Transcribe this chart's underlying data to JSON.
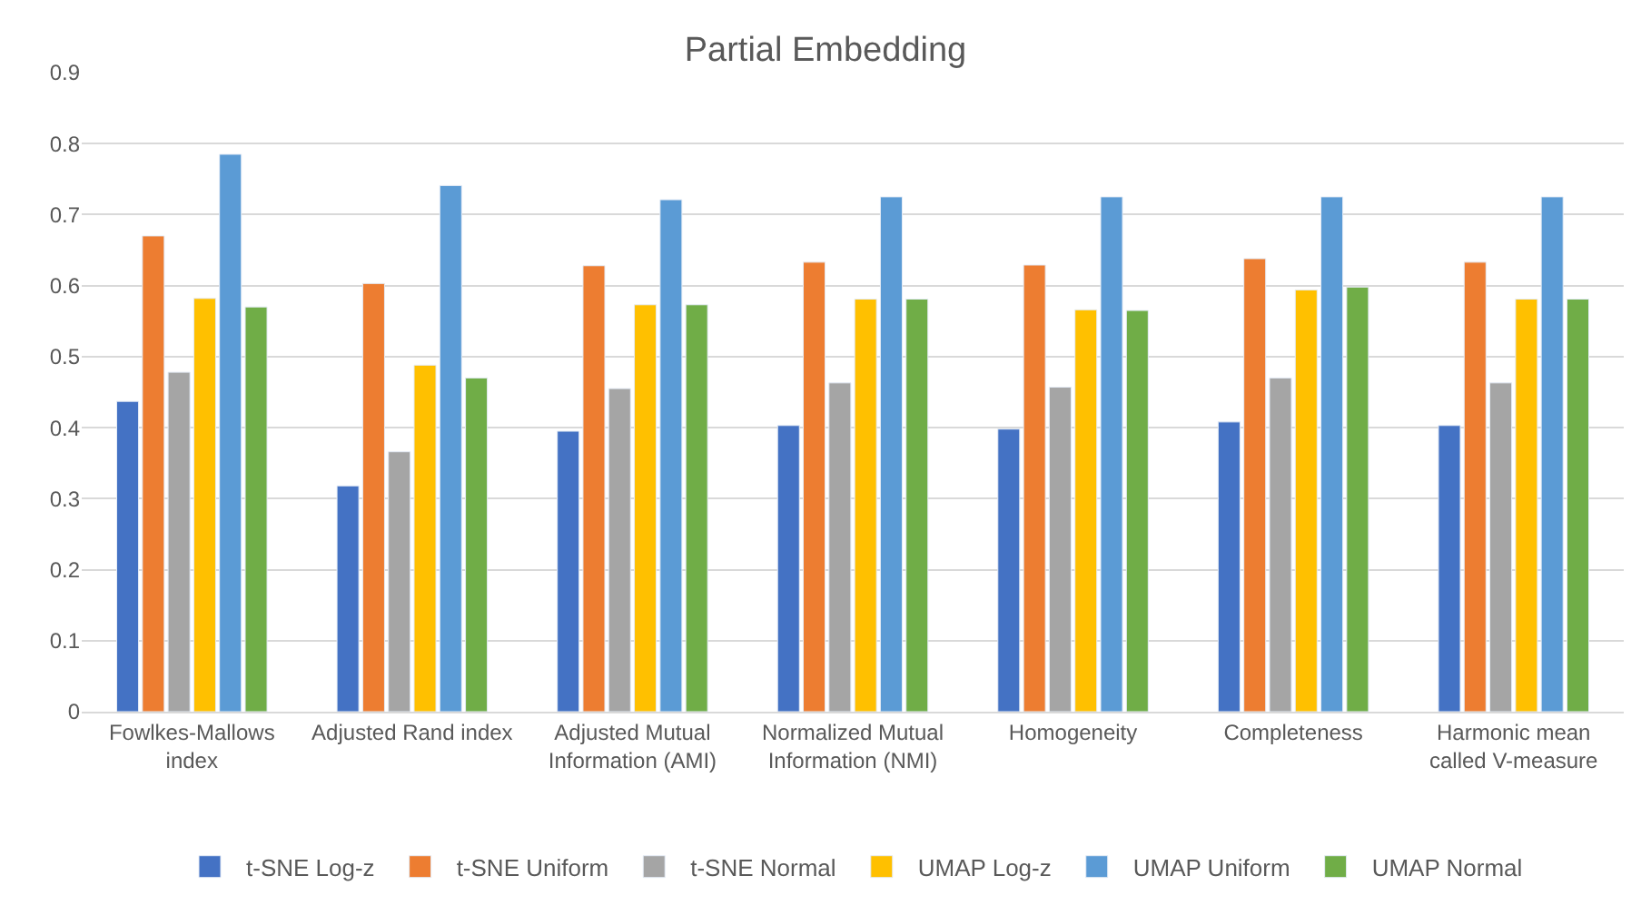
{
  "chart_data": {
    "type": "bar",
    "title": "Partial Embedding",
    "categories": [
      "Fowlkes-Mallows index",
      "Adjusted Rand index",
      "Adjusted Mutual Information (AMI)",
      "Normalized Mutual Information (NMI)",
      "Homogeneity",
      "Completeness",
      "Harmonic mean called V-measure"
    ],
    "series": [
      {
        "name": "t-SNE Log-z",
        "color": "#4472c4",
        "values": [
          0.437,
          0.318,
          0.395,
          0.403,
          0.398,
          0.408,
          0.403
        ]
      },
      {
        "name": "t-SNE Uniform",
        "color": "#ed7d31",
        "values": [
          0.67,
          0.603,
          0.628,
          0.633,
          0.629,
          0.638,
          0.633
        ]
      },
      {
        "name": "t-SNE Normal",
        "color": "#a5a5a5",
        "values": [
          0.478,
          0.366,
          0.455,
          0.463,
          0.457,
          0.47,
          0.463
        ]
      },
      {
        "name": "UMAP Log-z",
        "color": "#ffc000",
        "values": [
          0.582,
          0.488,
          0.573,
          0.581,
          0.566,
          0.594,
          0.581
        ]
      },
      {
        "name": "UMAP Uniform",
        "color": "#5b9bd5",
        "values": [
          0.785,
          0.741,
          0.721,
          0.725,
          0.725,
          0.725,
          0.725
        ]
      },
      {
        "name": "UMAP Normal",
        "color": "#70ad47",
        "values": [
          0.57,
          0.47,
          0.573,
          0.581,
          0.565,
          0.598,
          0.581
        ]
      }
    ],
    "ylim": [
      0,
      0.9
    ],
    "yticks": [
      0,
      0.1,
      0.2,
      0.3,
      0.4,
      0.5,
      0.6,
      0.7,
      0.8,
      0.9
    ],
    "grid": "y",
    "legend": "bottom"
  }
}
